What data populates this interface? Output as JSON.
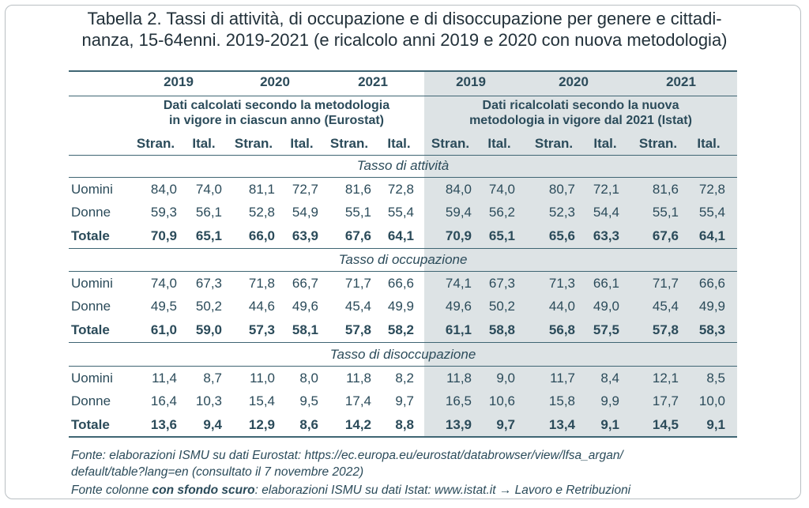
{
  "title_line1": "Tabella 2. Tassi di attività, di occupazione e di disoccupazione per genere e cittadi-",
  "title_line2": "nanza, 15-64enni. 2019-2021 (e ricalcolo anni 2019 e 2020 con nuova metodologia)",
  "years": [
    "2019",
    "2020",
    "2021",
    "2019",
    "2020",
    "2021"
  ],
  "methodology_left": [
    "Dati calcolati secondo la metodologia",
    "in vigore in ciascun anno (Eurostat)"
  ],
  "methodology_right": [
    "Dati ricalcolati secondo la nuova",
    "metodologia in vigore dal 2021 (Istat)"
  ],
  "subheaders": [
    "Stran.",
    "Ital.",
    "Stran.",
    "Ital.",
    "Stran.",
    "Ital.",
    "Stran.",
    "Ital.",
    "Stran.",
    "Ital.",
    "Stran.",
    "Ital."
  ],
  "sections": [
    {
      "title": "Tasso di attività",
      "rows": [
        {
          "label": "Uomini",
          "values": [
            "84,0",
            "74,0",
            "81,1",
            "72,7",
            "81,6",
            "72,8",
            "84,0",
            "74,0",
            "80,7",
            "72,1",
            "81,6",
            "72,8"
          ]
        },
        {
          "label": "Donne",
          "values": [
            "59,3",
            "56,1",
            "52,8",
            "54,9",
            "55,1",
            "55,4",
            "59,4",
            "56,2",
            "52,3",
            "54,4",
            "55,1",
            "55,4"
          ]
        },
        {
          "label": "Totale",
          "values": [
            "70,9",
            "65,1",
            "66,0",
            "63,9",
            "67,6",
            "64,1",
            "70,9",
            "65,1",
            "65,6",
            "63,3",
            "67,6",
            "64,1"
          ]
        }
      ]
    },
    {
      "title": "Tasso di occupazione",
      "rows": [
        {
          "label": "Uomini",
          "values": [
            "74,0",
            "67,3",
            "71,8",
            "66,7",
            "71,7",
            "66,6",
            "74,1",
            "67,3",
            "71,3",
            "66,1",
            "71,7",
            "66,6"
          ]
        },
        {
          "label": "Donne",
          "values": [
            "49,5",
            "50,2",
            "44,6",
            "49,6",
            "45,4",
            "49,9",
            "49,6",
            "50,2",
            "44,0",
            "49,0",
            "45,4",
            "49,9"
          ]
        },
        {
          "label": "Totale",
          "values": [
            "61,0",
            "59,0",
            "57,3",
            "58,1",
            "57,8",
            "58,2",
            "61,1",
            "58,8",
            "56,8",
            "57,5",
            "57,8",
            "58,3"
          ]
        }
      ]
    },
    {
      "title": "Tasso di disoccupazione",
      "rows": [
        {
          "label": "Uomini",
          "values": [
            "11,4",
            "8,7",
            "11,0",
            "8,0",
            "11,8",
            "8,2",
            "11,8",
            "9,0",
            "11,7",
            "8,4",
            "12,1",
            "8,5"
          ]
        },
        {
          "label": "Donne",
          "values": [
            "16,4",
            "10,3",
            "15,4",
            "9,5",
            "17,4",
            "9,7",
            "16,5",
            "10,6",
            "15,8",
            "9,9",
            "17,7",
            "10,0"
          ]
        },
        {
          "label": "Totale",
          "values": [
            "13,6",
            "9,4",
            "12,9",
            "8,6",
            "14,2",
            "8,8",
            "13,9",
            "9,7",
            "13,4",
            "9,1",
            "14,5",
            "9,1"
          ]
        }
      ]
    }
  ],
  "source_line1": "Fonte: elaborazioni ISMU su dati Eurostat: https://ec.europa.eu/eurostat/databrowser/view/lfsa_argan/",
  "source_line2": "default/table?lang=en (consultato il 7 novembre 2022)",
  "source2_prefix": "Fonte colonne ",
  "source2_bold": "con sfondo scuro",
  "source2_suffix": ": elaborazioni ISMU su dati Istat: www.istat.it → Lavoro e Retribuzioni",
  "colors": {
    "text": "#2b4b5a",
    "shade": "#dde3e5",
    "rule": "#3f6573"
  }
}
